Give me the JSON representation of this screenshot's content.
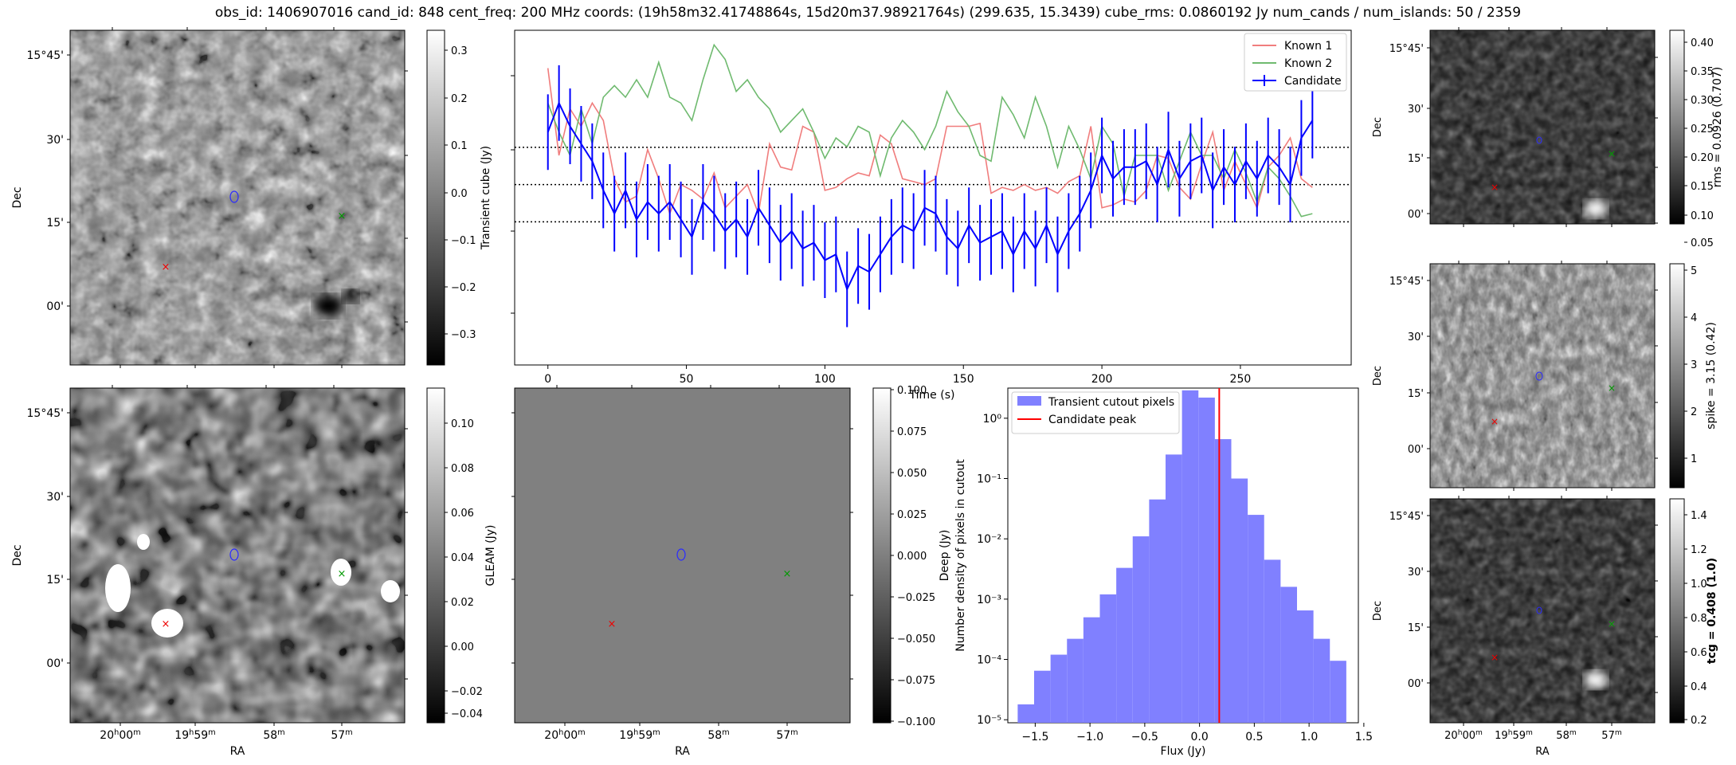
{
  "title": "obs_id: 1406907016 cand_id: 848 cent_freq: 200 MHz coords: (19h58m32.41748864s, 15d20m37.98921764s) (299.635, 15.3439) cube_rms: 0.0860192 Jy num_cands / num_islands: 50 / 2359",
  "image_panels": {
    "dec_ticks": [
      "15°45'",
      "30'",
      "15'",
      "00'"
    ],
    "ra_ticks": [
      {
        "main": "20",
        "sup1": "h",
        "mid": "00",
        "sup2": "m"
      },
      {
        "main": "19",
        "sup1": "h",
        "mid": "59",
        "sup2": "m"
      },
      {
        "main": "58",
        "sup1": "",
        "mid": "",
        "sup2": "m"
      },
      {
        "main": "57",
        "sup1": "",
        "mid": "",
        "sup2": "m"
      }
    ],
    "dec_label": "Dec",
    "ra_label": "RA"
  },
  "colorbars": {
    "transient": {
      "label": "Transient cube (Jy)",
      "ticks": [
        "0.3",
        "0.2",
        "0.1",
        "0.0",
        "−0.1",
        "−0.2",
        "−0.3"
      ]
    },
    "gleam": {
      "label": "GLEAM (Jy)",
      "ticks": [
        "0.10",
        "0.08",
        "0.06",
        "0.04",
        "0.02",
        "0.00",
        "−0.02",
        "−0.04"
      ]
    },
    "deep": {
      "label": "Deep (Jy)",
      "ticks": [
        "0.100",
        "0.075",
        "0.050",
        "0.025",
        "0.000",
        "−0.025",
        "−0.050",
        "−0.075",
        "−0.100"
      ]
    },
    "rms": {
      "label": "rms = 0.0926 (0.707)",
      "ticks": [
        "0.40",
        "0.35",
        "0.30",
        "0.25",
        "0.20",
        "0.15",
        "0.10",
        "0.05"
      ]
    },
    "spike": {
      "label": "spike = 3.15 (0.42)",
      "ticks": [
        "5",
        "4",
        "3",
        "2",
        "1"
      ]
    },
    "tcg": {
      "label": "tcg = 0.408 (1.0)",
      "ticks": [
        "1.4",
        "1.2",
        "1.0",
        "0.8",
        "0.6",
        "0.4",
        "0.2"
      ]
    }
  },
  "chart_data": [
    {
      "type": "line",
      "title": "",
      "xlabel": "Time (s)",
      "ylabel": "",
      "xlim": [
        -12,
        290
      ],
      "ylim": [
        -0.62,
        0.53
      ],
      "xticks": [
        0,
        50,
        100,
        150,
        200,
        250
      ],
      "hlines": [
        -0.128,
        0.0,
        0.128
      ],
      "series": [
        {
          "name": "Known 1",
          "color": "#f07d7d",
          "x": [
            0,
            4,
            8,
            12,
            16,
            20,
            24,
            28,
            32,
            36,
            40,
            44,
            48,
            52,
            56,
            60,
            64,
            68,
            72,
            76,
            80,
            84,
            88,
            92,
            96,
            100,
            104,
            108,
            112,
            116,
            120,
            124,
            128,
            132,
            136,
            140,
            144,
            148,
            152,
            156,
            160,
            164,
            168,
            172,
            176,
            180,
            184,
            188,
            192,
            196,
            200,
            204,
            208,
            212,
            216,
            220,
            224,
            228,
            232,
            236,
            240,
            244,
            248,
            252,
            256,
            260,
            264,
            268,
            272,
            276
          ],
          "values": [
            0.4,
            0.1,
            0.26,
            0.2,
            0.28,
            0.22,
            0.02,
            -0.06,
            -0.04,
            0.12,
            0.02,
            -0.1,
            0.0,
            -0.02,
            -0.05,
            0.04,
            -0.08,
            -0.04,
            0.0,
            -0.1,
            0.14,
            0.06,
            0.05,
            0.2,
            0.18,
            -0.02,
            -0.01,
            0.02,
            0.04,
            0.03,
            0.17,
            0.14,
            0.02,
            0.01,
            0.0,
            0.02,
            0.2,
            0.2,
            0.2,
            0.21,
            -0.03,
            -0.01,
            -0.02,
            0.0,
            -0.02,
            -0.01,
            -0.03,
            0.01,
            0.03,
            0.2,
            -0.08,
            -0.07,
            -0.05,
            -0.06,
            -0.02,
            0.1,
            0.09,
            -0.01,
            -0.05,
            0.07,
            0.18,
            -0.02,
            0.08,
            0.0,
            -0.08,
            0.06,
            0.1,
            0.16,
            0.02,
            -0.01
          ]
        },
        {
          "name": "Known 2",
          "color": "#6fba6f",
          "x": [
            0,
            4,
            8,
            12,
            16,
            20,
            24,
            28,
            32,
            36,
            40,
            44,
            48,
            52,
            56,
            60,
            64,
            68,
            72,
            76,
            80,
            84,
            88,
            92,
            96,
            100,
            104,
            108,
            112,
            116,
            120,
            124,
            128,
            132,
            136,
            140,
            144,
            148,
            152,
            156,
            160,
            164,
            168,
            172,
            176,
            180,
            184,
            188,
            192,
            196,
            200,
            204,
            208,
            212,
            216,
            220,
            224,
            228,
            232,
            236,
            240,
            244,
            248,
            252,
            256,
            260,
            264,
            268,
            272,
            276
          ],
          "values": [
            0.28,
            0.18,
            0.1,
            0.26,
            0.14,
            0.3,
            0.34,
            0.3,
            0.36,
            0.3,
            0.42,
            0.3,
            0.28,
            0.22,
            0.36,
            0.48,
            0.43,
            0.32,
            0.36,
            0.3,
            0.26,
            0.18,
            0.22,
            0.26,
            0.18,
            0.09,
            0.16,
            0.13,
            0.2,
            0.18,
            0.03,
            0.16,
            0.22,
            0.18,
            0.12,
            0.2,
            0.32,
            0.25,
            0.2,
            0.1,
            0.08,
            0.3,
            0.24,
            0.16,
            0.3,
            0.2,
            0.06,
            0.2,
            0.12,
            0.02,
            0.2,
            0.14,
            -0.04,
            0.1,
            0.1,
            0.1,
            -0.02,
            0.08,
            0.18,
            0.1,
            0.1,
            0.02,
            0.12,
            0.04,
            -0.06,
            0.06,
            0.02,
            -0.04,
            -0.11,
            -0.1
          ]
        },
        {
          "name": "Candidate",
          "color": "#0000ff",
          "error": 0.13,
          "x": [
            0,
            4,
            8,
            12,
            16,
            20,
            24,
            28,
            32,
            36,
            40,
            44,
            48,
            52,
            56,
            60,
            64,
            68,
            72,
            76,
            80,
            84,
            88,
            92,
            96,
            100,
            104,
            108,
            112,
            116,
            120,
            124,
            128,
            132,
            136,
            140,
            144,
            148,
            152,
            156,
            160,
            164,
            168,
            172,
            176,
            180,
            184,
            188,
            192,
            196,
            200,
            204,
            208,
            212,
            216,
            220,
            224,
            228,
            232,
            236,
            240,
            244,
            248,
            252,
            256,
            260,
            264,
            268,
            272,
            276
          ],
          "values": [
            0.18,
            0.28,
            0.2,
            0.14,
            0.08,
            -0.02,
            -0.1,
            -0.02,
            -0.12,
            -0.06,
            -0.1,
            -0.06,
            -0.12,
            -0.18,
            -0.06,
            -0.1,
            -0.16,
            -0.12,
            -0.18,
            -0.08,
            -0.14,
            -0.2,
            -0.16,
            -0.22,
            -0.2,
            -0.26,
            -0.24,
            -0.36,
            -0.28,
            -0.3,
            -0.24,
            -0.18,
            -0.14,
            -0.16,
            -0.08,
            -0.1,
            -0.18,
            -0.22,
            -0.14,
            -0.2,
            -0.18,
            -0.16,
            -0.24,
            -0.16,
            -0.22,
            -0.14,
            -0.24,
            -0.16,
            -0.1,
            -0.02,
            0.1,
            0.02,
            0.06,
            0.06,
            0.08,
            0.0,
            0.12,
            0.02,
            0.08,
            0.1,
            -0.02,
            0.06,
            0.0,
            0.08,
            0.02,
            0.1,
            0.06,
            0.0,
            0.16,
            0.22
          ]
        }
      ]
    },
    {
      "type": "bar",
      "title": "",
      "xlabel": "Flux (Jy)",
      "ylabel": "Number density of pixels in cutout",
      "xlim": [
        -1.75,
        1.45
      ],
      "ylim_log10": [
        -5.05,
        0.5
      ],
      "yscale": "log",
      "xticks": [
        "−1.5",
        "−1.0",
        "−0.5",
        "0.0",
        "0.5",
        "1.0",
        "1.5"
      ],
      "xtick_values": [
        -1.5,
        -1.0,
        -0.5,
        0.0,
        0.5,
        1.0,
        1.5
      ],
      "yticks": [
        "10⁰",
        "10⁻¹",
        "10⁻²",
        "10⁻³",
        "10⁻⁴",
        "10⁻⁵"
      ],
      "ytick_exponents": [
        0,
        -1,
        -2,
        -3,
        -4,
        -5
      ],
      "bin_edges": [
        -1.66,
        -1.51,
        -1.36,
        -1.21,
        -1.06,
        -0.91,
        -0.76,
        -0.61,
        -0.46,
        -0.31,
        -0.16,
        -0.01,
        0.14,
        0.29,
        0.44,
        0.59,
        0.74,
        0.89,
        1.04,
        1.19,
        1.34
      ],
      "values": [
        1.8e-05,
        6.5e-05,
        0.00012,
        0.00022,
        0.0005,
        0.0012,
        0.0033,
        0.011,
        0.045,
        0.25,
        2.9,
        2.2,
        0.45,
        0.1,
        0.025,
        0.0045,
        0.0016,
        0.00065,
        0.00022,
        9.5e-05
      ],
      "vline": 0.18,
      "legend": [
        {
          "name": "Transient cutout pixels",
          "color": "#8080ff"
        },
        {
          "name": "Candidate peak",
          "color": "#ff0000"
        }
      ]
    }
  ]
}
